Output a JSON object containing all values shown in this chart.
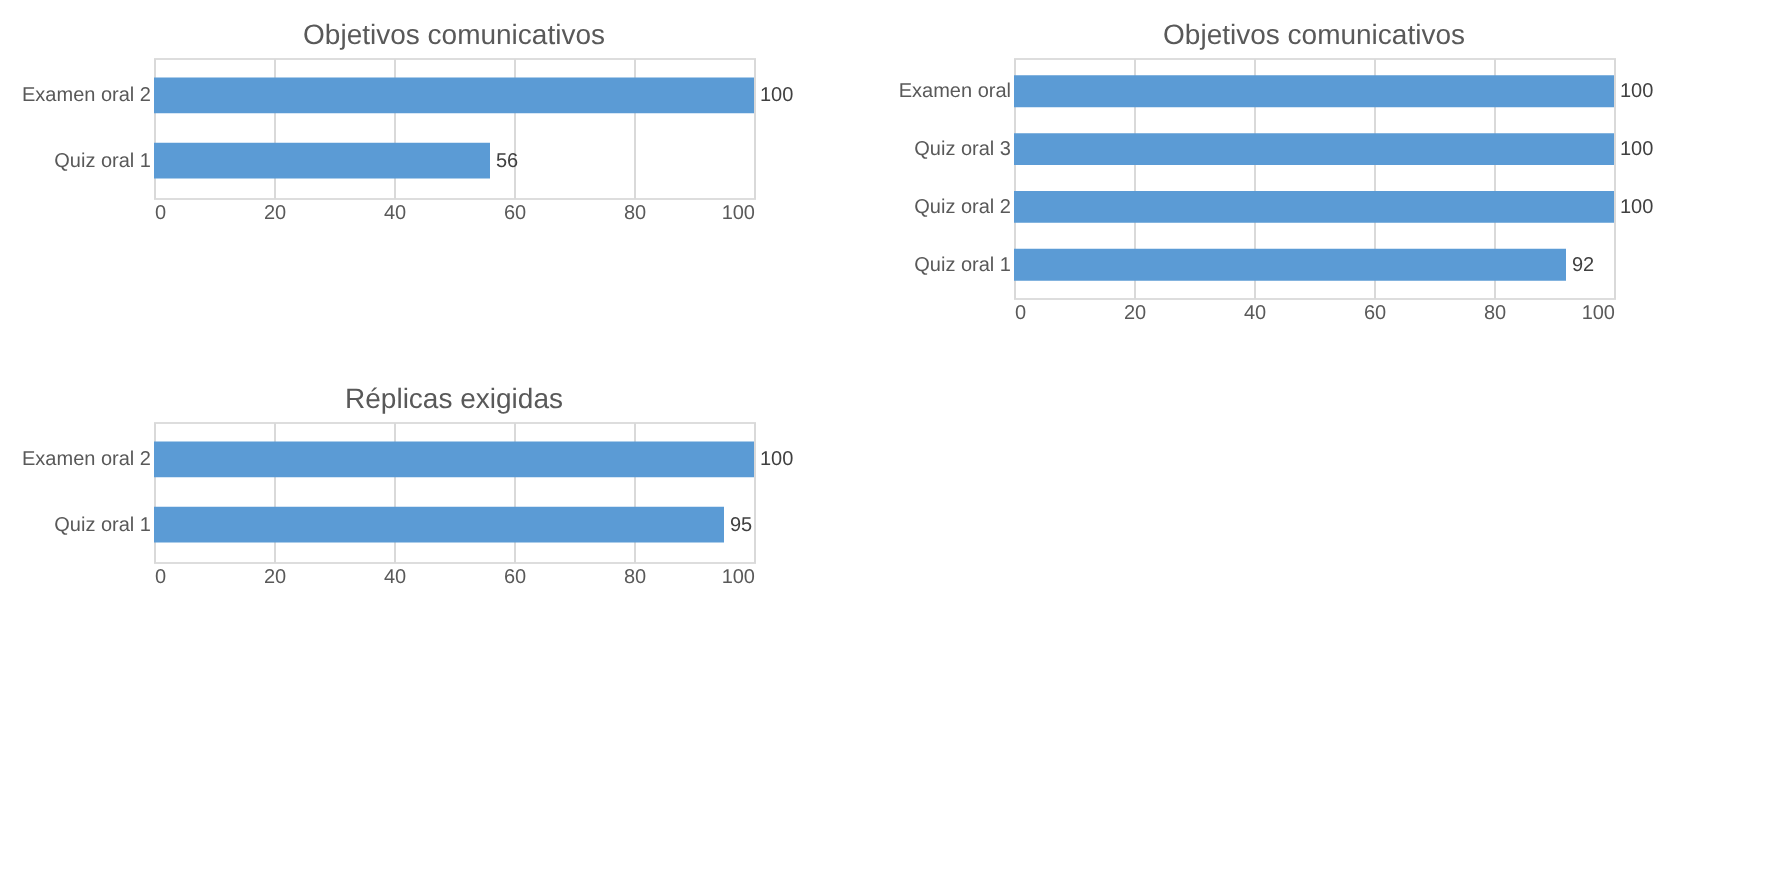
{
  "chart_data": [
    {
      "type": "bar",
      "title": "Objetivos comunicativos",
      "orientation": "horizontal",
      "categories": [
        "Examen oral 2",
        "Quiz oral 1"
      ],
      "values": [
        100,
        56
      ],
      "color": "#5b9bd5",
      "xlim": [
        0,
        100
      ],
      "xticks": [
        0,
        20,
        40,
        60,
        80,
        100
      ],
      "grid": "x",
      "data_labels": true
    },
    {
      "type": "bar",
      "title": "Objetivos comunicativos",
      "orientation": "horizontal",
      "categories": [
        "Examen oral",
        "Quiz oral 3",
        "Quiz oral 2",
        "Quiz oral 1"
      ],
      "values": [
        100,
        100,
        100,
        92
      ],
      "color": "#5b9bd5",
      "xlim": [
        0,
        100
      ],
      "xticks": [
        0,
        20,
        40,
        60,
        80,
        100
      ],
      "grid": "x",
      "data_labels": true
    },
    {
      "type": "bar",
      "title": "Réplicas exigidas",
      "orientation": "horizontal",
      "categories": [
        "Examen oral 2",
        "Quiz oral 1"
      ],
      "values": [
        100,
        95
      ],
      "color": "#5b9bd5",
      "xlim": [
        0,
        100
      ],
      "xticks": [
        0,
        20,
        40,
        60,
        80,
        100
      ],
      "grid": "x",
      "data_labels": true
    }
  ]
}
